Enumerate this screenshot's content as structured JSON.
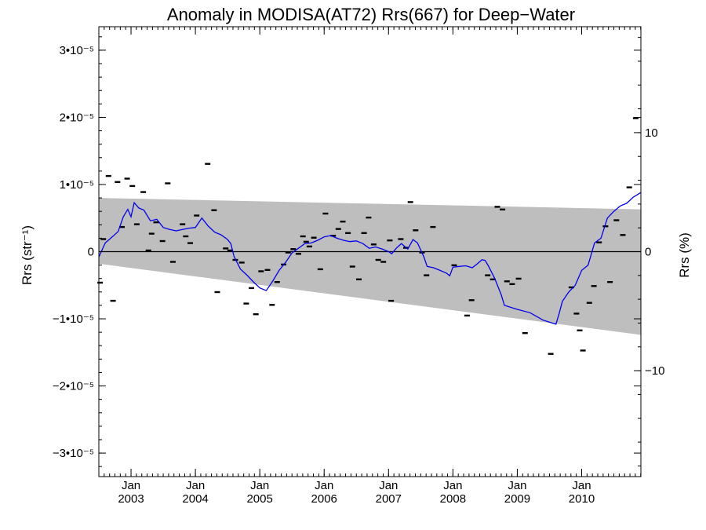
{
  "chart_data": {
    "type": "scatter",
    "title": "Anomaly in MODISA(AT72) Rrs(667) for Deep−Water",
    "ylabel_left": "Rrs (str⁻¹)",
    "ylabel_right": "Rrs (%)",
    "xlim": [
      2002.5,
      2010.92
    ],
    "ylim": [
      -3.35e-05,
      3.35e-05
    ],
    "right_ylim": [
      -18.9,
      18.9
    ],
    "left_ticks": [
      {
        "value": 3e-05,
        "label": "3•10⁻⁵"
      },
      {
        "value": 2e-05,
        "label": "2•10⁻⁵"
      },
      {
        "value": 1e-05,
        "label": "1•10⁻⁵"
      },
      {
        "value": 0,
        "label": "0"
      },
      {
        "value": -1e-05,
        "label": "−1•10⁻⁵"
      },
      {
        "value": -2e-05,
        "label": "−2•10⁻⁵"
      },
      {
        "value": -3e-05,
        "label": "−3•10⁻⁵"
      }
    ],
    "right_ticks": [
      {
        "value": 10,
        "label": "10"
      },
      {
        "value": 0,
        "label": "0"
      },
      {
        "value": -10,
        "label": "−10"
      }
    ],
    "x_ticks": [
      {
        "value": 2003.0,
        "month": "Jan",
        "year": "2003"
      },
      {
        "value": 2004.0,
        "month": "Jan",
        "year": "2004"
      },
      {
        "value": 2005.0,
        "month": "Jan",
        "year": "2005"
      },
      {
        "value": 2006.0,
        "month": "Jan",
        "year": "2006"
      },
      {
        "value": 2007.0,
        "month": "Jan",
        "year": "2007"
      },
      {
        "value": 2008.0,
        "month": "Jan",
        "year": "2008"
      },
      {
        "value": 2009.0,
        "month": "Jan",
        "year": "2009"
      },
      {
        "value": 2010.0,
        "month": "Jan",
        "year": "2010"
      }
    ],
    "band": {
      "upper": [
        [
          2002.5,
          8e-06
        ],
        [
          2010.92,
          6.3e-06
        ]
      ],
      "lower": [
        [
          2002.5,
          -1.8e-06
        ],
        [
          2010.92,
          -1.24e-05
        ]
      ]
    },
    "zero_line": true,
    "colors": {
      "line": "#0000ee",
      "band": "#bebebe",
      "points": "#000000"
    },
    "points": [
      [
        2002.52,
        -4.6e-06
      ],
      [
        2002.57,
        1.9e-06
      ],
      [
        2002.65,
        1.13e-05
      ],
      [
        2002.72,
        -7.3e-06
      ],
      [
        2002.79,
        1.04e-05
      ],
      [
        2002.86,
        3.7e-06
      ],
      [
        2002.94,
        1.09e-05
      ],
      [
        2003.02,
        9.8e-06
      ],
      [
        2003.09,
        4.1e-06
      ],
      [
        2003.19,
        8.9e-06
      ],
      [
        2003.27,
        2e-07
      ],
      [
        2003.32,
        2.7e-06
      ],
      [
        2003.39,
        4.4e-06
      ],
      [
        2003.49,
        1.6e-06
      ],
      [
        2003.57,
        1.02e-05
      ],
      [
        2003.65,
        -1.5e-06
      ],
      [
        2003.8,
        4.1e-06
      ],
      [
        2003.85,
        2.3e-06
      ],
      [
        2003.92,
        1.3e-06
      ],
      [
        2004.02,
        5.4e-06
      ],
      [
        2004.19,
        1.31e-05
      ],
      [
        2004.29,
        6.2e-06
      ],
      [
        2004.34,
        -6e-06
      ],
      [
        2004.47,
        5e-07
      ],
      [
        2004.54,
        2e-07
      ],
      [
        2004.62,
        -1.2e-06
      ],
      [
        2004.72,
        -1.6e-06
      ],
      [
        2004.79,
        -7.7e-06
      ],
      [
        2004.87,
        -5.4e-06
      ],
      [
        2004.94,
        -9.3e-06
      ],
      [
        2005.02,
        -2.9e-06
      ],
      [
        2005.12,
        -2.7e-06
      ],
      [
        2005.19,
        -7.9e-06
      ],
      [
        2005.27,
        -4.5e-06
      ],
      [
        2005.37,
        -1.9e-06
      ],
      [
        2005.44,
        -1e-07
      ],
      [
        2005.52,
        4e-07
      ],
      [
        2005.6,
        -3e-07
      ],
      [
        2005.67,
        2.3e-06
      ],
      [
        2005.72,
        1.5e-06
      ],
      [
        2005.77,
        8e-07
      ],
      [
        2005.84,
        2.1e-06
      ],
      [
        2005.94,
        -2.6e-06
      ],
      [
        2006.02,
        5.7e-06
      ],
      [
        2006.14,
        2.4e-06
      ],
      [
        2006.22,
        3.4e-06
      ],
      [
        2006.29,
        4.5e-06
      ],
      [
        2006.37,
        2.8e-06
      ],
      [
        2006.44,
        -2.2e-06
      ],
      [
        2006.54,
        -4.1e-06
      ],
      [
        2006.62,
        2.8e-06
      ],
      [
        2006.69,
        5.1e-06
      ],
      [
        2006.77,
        1.1e-06
      ],
      [
        2006.84,
        -1.2e-06
      ],
      [
        2006.92,
        -1.5e-06
      ],
      [
        2007.02,
        1.7e-06
      ],
      [
        2007.04,
        -7.3e-06
      ],
      [
        2007.19,
        1.9e-06
      ],
      [
        2007.27,
        6e-07
      ],
      [
        2007.34,
        7.4e-06
      ],
      [
        2007.42,
        3.2e-06
      ],
      [
        2007.52,
        -1e-07
      ],
      [
        2007.59,
        -3.5e-06
      ],
      [
        2007.69,
        3.7e-06
      ],
      [
        2008.02,
        -2e-06
      ],
      [
        2008.22,
        -9.5e-06
      ],
      [
        2008.29,
        -7.2e-06
      ],
      [
        2008.54,
        -3.5e-06
      ],
      [
        2008.62,
        -4.1e-06
      ],
      [
        2008.69,
        6.7e-06
      ],
      [
        2008.77,
        6.3e-06
      ],
      [
        2008.84,
        -4.4e-06
      ],
      [
        2008.92,
        -4.8e-06
      ],
      [
        2009.02,
        -4e-06
      ],
      [
        2009.12,
        -1.21e-05
      ],
      [
        2009.52,
        -1.52e-05
      ],
      [
        2009.84,
        -5.3e-06
      ],
      [
        2009.92,
        -9.2e-06
      ],
      [
        2009.97,
        -1.17e-05
      ],
      [
        2010.02,
        -1.47e-05
      ],
      [
        2010.12,
        -7.6e-06
      ],
      [
        2010.19,
        -5.1e-06
      ],
      [
        2010.27,
        1.4e-06
      ],
      [
        2010.37,
        3.8e-06
      ],
      [
        2010.44,
        -4.5e-06
      ],
      [
        2010.54,
        4.7e-06
      ],
      [
        2010.64,
        2.5e-06
      ],
      [
        2010.74,
        9.6e-06
      ],
      [
        2010.84,
        1.99e-05
      ]
    ],
    "line": [
      [
        2002.5,
        -8e-07
      ],
      [
        2002.6,
        1.3e-06
      ],
      [
        2002.72,
        2.3e-06
      ],
      [
        2002.8,
        3e-06
      ],
      [
        2002.88,
        5.2e-06
      ],
      [
        2002.95,
        6.3e-06
      ],
      [
        2003.0,
        5.2e-06
      ],
      [
        2003.05,
        7.3e-06
      ],
      [
        2003.12,
        6.5e-06
      ],
      [
        2003.2,
        6.2e-06
      ],
      [
        2003.3,
        4.6e-06
      ],
      [
        2003.4,
        4.8e-06
      ],
      [
        2003.5,
        3.6e-06
      ],
      [
        2003.6,
        3.3e-06
      ],
      [
        2003.7,
        3.1e-06
      ],
      [
        2003.8,
        3.3e-06
      ],
      [
        2003.9,
        3.5e-06
      ],
      [
        2004.0,
        3.6e-06
      ],
      [
        2004.1,
        5e-06
      ],
      [
        2004.2,
        3.8e-06
      ],
      [
        2004.3,
        2.9e-06
      ],
      [
        2004.4,
        2.5e-06
      ],
      [
        2004.5,
        1.8e-06
      ],
      [
        2004.55,
        1.2e-06
      ],
      [
        2004.6,
        -7e-07
      ],
      [
        2004.7,
        -2.6e-06
      ],
      [
        2004.8,
        -3.5e-06
      ],
      [
        2004.9,
        -4.5e-06
      ],
      [
        2005.0,
        -5.4e-06
      ],
      [
        2005.1,
        -5.8e-06
      ],
      [
        2005.2,
        -4.4e-06
      ],
      [
        2005.3,
        -2.8e-06
      ],
      [
        2005.4,
        -1.6e-06
      ],
      [
        2005.5,
        -2e-07
      ],
      [
        2005.6,
        5e-07
      ],
      [
        2005.7,
        1.2e-06
      ],
      [
        2005.8,
        1.3e-06
      ],
      [
        2005.9,
        1.7e-06
      ],
      [
        2006.0,
        2.2e-06
      ],
      [
        2006.1,
        2.4e-06
      ],
      [
        2006.2,
        2e-06
      ],
      [
        2006.3,
        1.7e-06
      ],
      [
        2006.4,
        1.5e-06
      ],
      [
        2006.5,
        1.6e-06
      ],
      [
        2006.6,
        1.2e-06
      ],
      [
        2006.7,
        5e-07
      ],
      [
        2006.8,
        7e-07
      ],
      [
        2006.9,
        4e-07
      ],
      [
        2007.0,
        0.0
      ],
      [
        2007.05,
        -3e-07
      ],
      [
        2007.12,
        5e-07
      ],
      [
        2007.2,
        1.2e-06
      ],
      [
        2007.3,
        4e-07
      ],
      [
        2007.38,
        1.8e-06
      ],
      [
        2007.45,
        1.3e-06
      ],
      [
        2007.55,
        -8e-07
      ],
      [
        2007.6,
        -2.2e-06
      ],
      [
        2007.7,
        -2.4e-06
      ],
      [
        2007.8,
        -2.8e-06
      ],
      [
        2007.9,
        -3.2e-06
      ],
      [
        2007.95,
        -3.6e-06
      ],
      [
        2008.0,
        -2.3e-06
      ],
      [
        2008.1,
        -2.2e-06
      ],
      [
        2008.2,
        -2.1e-06
      ],
      [
        2008.3,
        -2.4e-06
      ],
      [
        2008.38,
        -1.8e-06
      ],
      [
        2008.45,
        -1.2e-06
      ],
      [
        2008.5,
        -1.3e-06
      ],
      [
        2008.55,
        -2.1e-06
      ],
      [
        2008.65,
        -4e-06
      ],
      [
        2008.75,
        -6.4e-06
      ],
      [
        2008.8,
        -8e-06
      ],
      [
        2009.0,
        -8.6e-06
      ],
      [
        2009.2,
        -9.1e-06
      ],
      [
        2009.4,
        -1.02e-05
      ],
      [
        2009.6,
        -1.08e-05
      ],
      [
        2009.65,
        -9.2e-06
      ],
      [
        2009.7,
        -7.4e-06
      ],
      [
        2009.8,
        -6e-06
      ],
      [
        2009.9,
        -5e-06
      ],
      [
        2010.0,
        -2.8e-06
      ],
      [
        2010.1,
        -2e-06
      ],
      [
        2010.2,
        1.3e-06
      ],
      [
        2010.3,
        2e-06
      ],
      [
        2010.4,
        5e-06
      ],
      [
        2010.5,
        6e-06
      ],
      [
        2010.6,
        6.8e-06
      ],
      [
        2010.7,
        7.2e-06
      ],
      [
        2010.8,
        8.1e-06
      ],
      [
        2010.92,
        8.8e-06
      ]
    ]
  }
}
